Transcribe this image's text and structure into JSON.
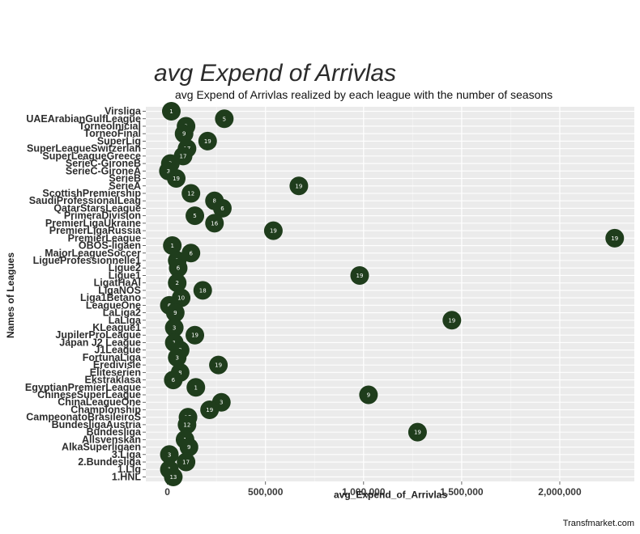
{
  "chart_data": {
    "type": "scatter",
    "title": "avg Expend of Arrivlas",
    "subtitle": "avg Expend of Arrivlas realized by each league with the number of seasons",
    "xlabel": "avg_Expend_of_Arrivlas",
    "ylabel": "Names of Leagues",
    "caption": "Transfmarket.com",
    "xlim": [
      -110000,
      2380000
    ],
    "xticks": [
      0,
      500000,
      1000000,
      1500000,
      2000000
    ],
    "xtick_labels": [
      "0",
      "500,000",
      "1,000,000",
      "1,500,000",
      "2,000,000"
    ],
    "grid": true,
    "point_color": "#1f3d1c",
    "panel_color": "#ebebeb",
    "points": [
      {
        "league": "Virsliga",
        "value": 20000,
        "seasons": 1
      },
      {
        "league": "UAEArabianGulfLeague",
        "value": 290000,
        "seasons": 5
      },
      {
        "league": "TorneoInicial",
        "value": 95000,
        "seasons": 3
      },
      {
        "league": "TorneoFinal",
        "value": 85000,
        "seasons": 9
      },
      {
        "league": "SuperLig",
        "value": 205000,
        "seasons": 19
      },
      {
        "league": "SuperLeagueSwitzerlan",
        "value": 100000,
        "seasons": 17
      },
      {
        "league": "SuperLeagueGreece",
        "value": 80000,
        "seasons": 17
      },
      {
        "league": "SerieC-GironeB",
        "value": 15000,
        "seasons": 3
      },
      {
        "league": "SerieC-GironeA",
        "value": 5000,
        "seasons": 3
      },
      {
        "league": "SerieB",
        "value": 45000,
        "seasons": 19
      },
      {
        "league": "SerieA",
        "value": 670000,
        "seasons": 19
      },
      {
        "league": "ScottishPremiership",
        "value": 120000,
        "seasons": 12
      },
      {
        "league": "SaudiProfessionalLeag",
        "value": 240000,
        "seasons": 8
      },
      {
        "league": "QatarStarsLeague",
        "value": 280000,
        "seasons": 6
      },
      {
        "league": "PrimeraDivision",
        "value": 140000,
        "seasons": 5
      },
      {
        "league": "PremierLigaUkraine",
        "value": 240000,
        "seasons": 16
      },
      {
        "league": "PremierLigaRussia",
        "value": 540000,
        "seasons": 19
      },
      {
        "league": "PremierLeague",
        "value": 2280000,
        "seasons": 19
      },
      {
        "league": "OBOS-ligaen",
        "value": 25000,
        "seasons": 1
      },
      {
        "league": "MajorLeagueSoccer",
        "value": 120000,
        "seasons": 6
      },
      {
        "league": "LigueProfessionnelle1",
        "value": 50000,
        "seasons": 1
      },
      {
        "league": "Ligue2",
        "value": 55000,
        "seasons": 6
      },
      {
        "league": "Ligue1",
        "value": 980000,
        "seasons": 19
      },
      {
        "league": "LigatHaAl",
        "value": 50000,
        "seasons": 2
      },
      {
        "league": "LigaNOS",
        "value": 180000,
        "seasons": 18
      },
      {
        "league": "Liga1Betano",
        "value": 70000,
        "seasons": 10
      },
      {
        "league": "LeagueOne",
        "value": 10000,
        "seasons": 6
      },
      {
        "league": "LaLiga2",
        "value": 40000,
        "seasons": 9
      },
      {
        "league": "LaLiga",
        "value": 1450000,
        "seasons": 19
      },
      {
        "league": "KLeague1",
        "value": 35000,
        "seasons": 3
      },
      {
        "league": "JupilerProLeague",
        "value": 140000,
        "seasons": 19
      },
      {
        "league": "Japan J2 League",
        "value": 35000,
        "seasons": 1
      },
      {
        "league": "J1League",
        "value": 65000,
        "seasons": 9
      },
      {
        "league": "FortunaLiga",
        "value": 50000,
        "seasons": 3
      },
      {
        "league": "Eredivisie",
        "value": 260000,
        "seasons": 19
      },
      {
        "league": "Eliteserien",
        "value": 65000,
        "seasons": 8
      },
      {
        "league": "Ekstraklasa",
        "value": 30000,
        "seasons": 6
      },
      {
        "league": "EgyptianPremierLeague",
        "value": 145000,
        "seasons": 1
      },
      {
        "league": "ChineseSuperLeague",
        "value": 1025000,
        "seasons": 9
      },
      {
        "league": "ChinaLeagueOne",
        "value": 275000,
        "seasons": 3
      },
      {
        "league": "Championship",
        "value": 215000,
        "seasons": 19
      },
      {
        "league": "CampeonatoBrasileiroS",
        "value": 105000,
        "seasons": 15
      },
      {
        "league": "BundesligaAustria",
        "value": 100000,
        "seasons": 12
      },
      {
        "league": "Bundesliga",
        "value": 1275000,
        "seasons": 19
      },
      {
        "league": "Allsvenskan",
        "value": 90000,
        "seasons": 1
      },
      {
        "league": "AlkaSuperligaen",
        "value": 110000,
        "seasons": 9
      },
      {
        "league": "3.Liga",
        "value": 10000,
        "seasons": 3
      },
      {
        "league": "2.Bundesliga",
        "value": 95000,
        "seasons": 17
      },
      {
        "league": "1.Lig",
        "value": 10000,
        "seasons": 1
      },
      {
        "league": "1.HNL",
        "value": 30000,
        "seasons": 13
      }
    ]
  }
}
